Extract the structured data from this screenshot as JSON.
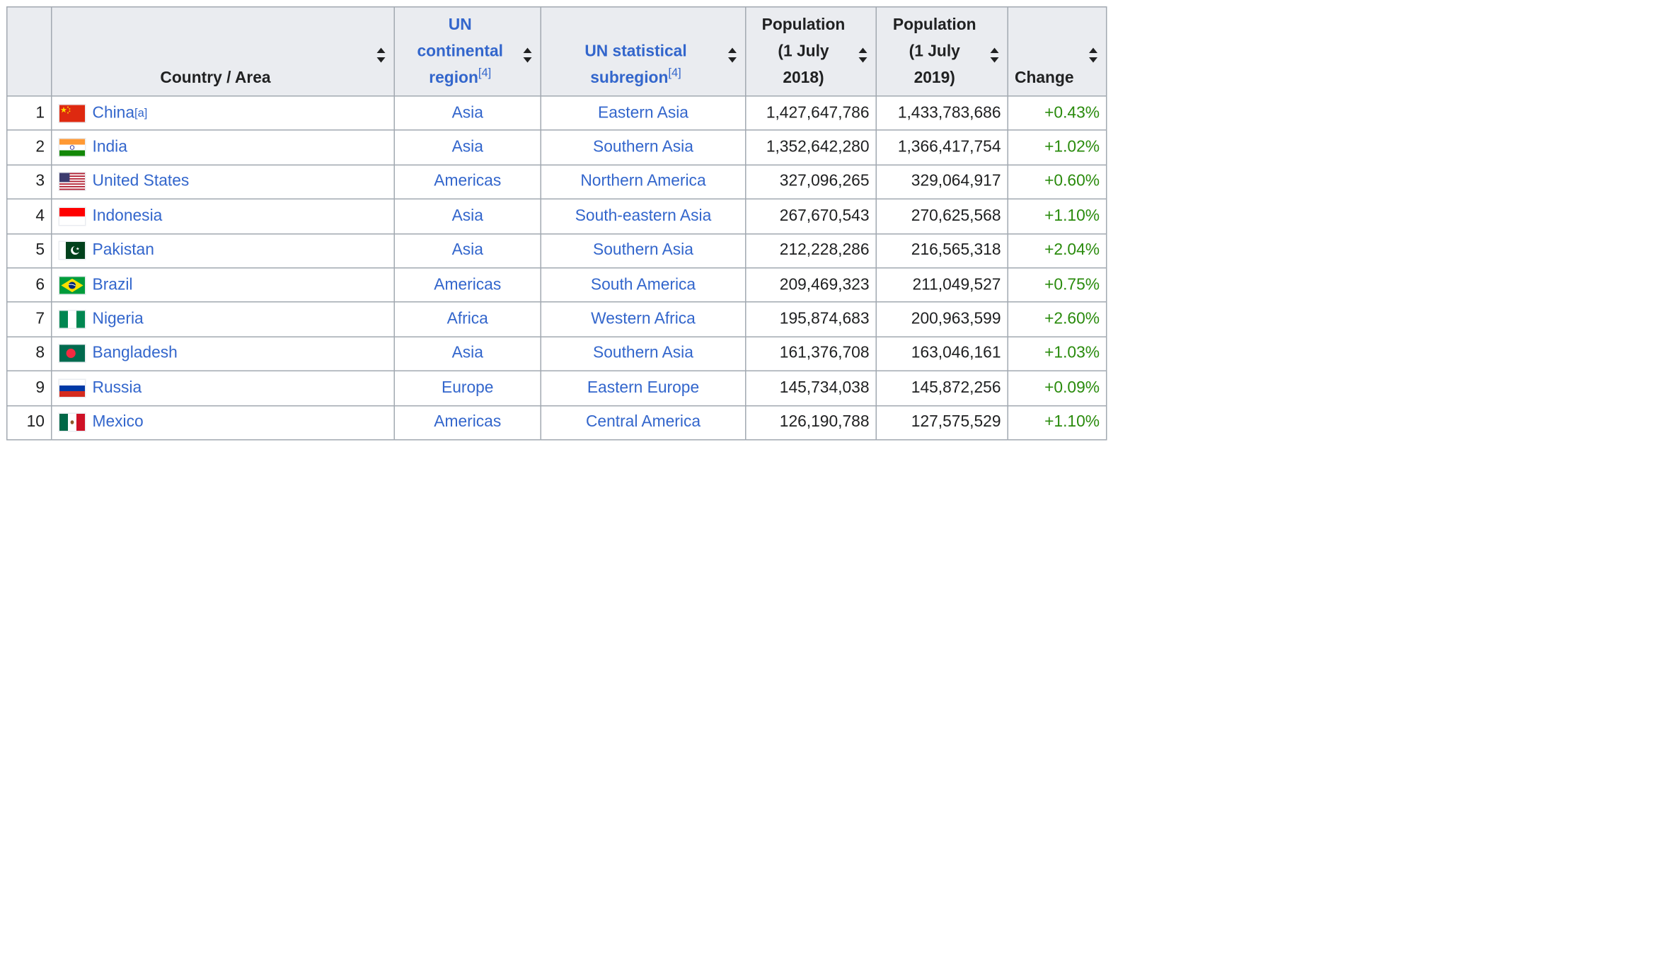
{
  "table": {
    "headers": {
      "rank": "",
      "country": "Country / Area",
      "continent": [
        "UN",
        "continental",
        "region"
      ],
      "continent_ref": "[4]",
      "subregion": [
        "UN statistical",
        "subregion"
      ],
      "subregion_ref": "[4]",
      "pop2018": [
        "Population",
        "(1 July",
        "2018)"
      ],
      "pop2019": [
        "Population",
        "(1 July",
        "2019)"
      ],
      "change": "Change"
    },
    "rows": [
      {
        "rank": "1",
        "flag": "china-flag-icon",
        "country": "China",
        "note": "[a]",
        "continent": "Asia",
        "subregion": "Eastern Asia",
        "pop2018": "1,427,647,786",
        "pop2019": "1,433,783,686",
        "change": "+0.43%"
      },
      {
        "rank": "2",
        "flag": "india-flag-icon",
        "country": "India",
        "note": "",
        "continent": "Asia",
        "subregion": "Southern Asia",
        "pop2018": "1,352,642,280",
        "pop2019": "1,366,417,754",
        "change": "+1.02%"
      },
      {
        "rank": "3",
        "flag": "united-states-flag-icon",
        "country": "United States",
        "note": "",
        "continent": "Americas",
        "subregion": "Northern America",
        "pop2018": "327,096,265",
        "pop2019": "329,064,917",
        "change": "+0.60%"
      },
      {
        "rank": "4",
        "flag": "indonesia-flag-icon",
        "country": "Indonesia",
        "note": "",
        "continent": "Asia",
        "subregion": "South-eastern Asia",
        "pop2018": "267,670,543",
        "pop2019": "270,625,568",
        "change": "+1.10%"
      },
      {
        "rank": "5",
        "flag": "pakistan-flag-icon",
        "country": "Pakistan",
        "note": "",
        "continent": "Asia",
        "subregion": "Southern Asia",
        "pop2018": "212,228,286",
        "pop2019": "216,565,318",
        "change": "+2.04%"
      },
      {
        "rank": "6",
        "flag": "brazil-flag-icon",
        "country": "Brazil",
        "note": "",
        "continent": "Americas",
        "subregion": "South America",
        "pop2018": "209,469,323",
        "pop2019": "211,049,527",
        "change": "+0.75%"
      },
      {
        "rank": "7",
        "flag": "nigeria-flag-icon",
        "country": "Nigeria",
        "note": "",
        "continent": "Africa",
        "subregion": "Western Africa",
        "pop2018": "195,874,683",
        "pop2019": "200,963,599",
        "change": "+2.60%"
      },
      {
        "rank": "8",
        "flag": "bangladesh-flag-icon",
        "country": "Bangladesh",
        "note": "",
        "continent": "Asia",
        "subregion": "Southern Asia",
        "pop2018": "161,376,708",
        "pop2019": "163,046,161",
        "change": "+1.03%"
      },
      {
        "rank": "9",
        "flag": "russia-flag-icon",
        "country": "Russia",
        "note": "",
        "continent": "Europe",
        "subregion": "Eastern Europe",
        "pop2018": "145,734,038",
        "pop2019": "145,872,256",
        "change": "+0.09%"
      },
      {
        "rank": "10",
        "flag": "mexico-flag-icon",
        "country": "Mexico",
        "note": "",
        "continent": "Americas",
        "subregion": "Central America",
        "pop2018": "126,190,788",
        "pop2019": "127,575,529",
        "change": "+1.10%"
      }
    ]
  },
  "colors": {
    "link": "#3366cc",
    "text": "#202122",
    "header_bg": "#eaecf0",
    "border": "#a2a9b1",
    "positive_change": "#2a8b0d"
  }
}
